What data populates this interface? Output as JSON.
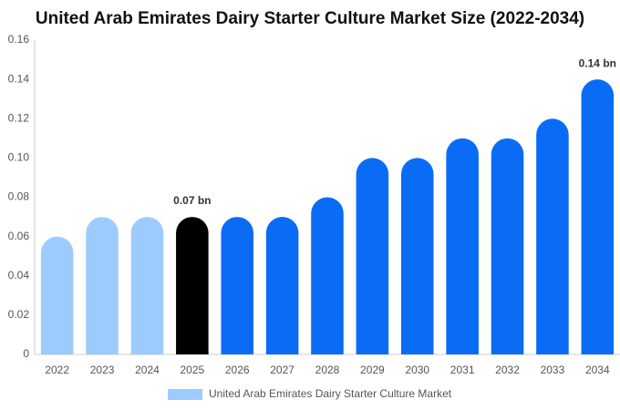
{
  "chart_data": {
    "type": "bar",
    "title": "United Arab Emirates Dairy Starter Culture Market Size (2022-2034)",
    "categories": [
      "2022",
      "2023",
      "2024",
      "2025",
      "2026",
      "2027",
      "2028",
      "2029",
      "2030",
      "2031",
      "2032",
      "2033",
      "2034"
    ],
    "series": [
      {
        "name": "United Arab Emirates Dairy Starter Culture Market",
        "color": "#9ecbff",
        "colors": [
          "#9ecbff",
          "#9ecbff",
          "#9ecbff",
          "#000000",
          "#0a6cf5",
          "#0a6cf5",
          "#0a6cf5",
          "#0a6cf5",
          "#0a6cf5",
          "#0a6cf5",
          "#0a6cf5",
          "#0a6cf5",
          "#0a6cf5"
        ],
        "values": [
          0.06,
          0.07,
          0.07,
          0.07,
          0.07,
          0.07,
          0.08,
          0.1,
          0.1,
          0.11,
          0.11,
          0.12,
          0.14
        ],
        "value_labels": [
          null,
          null,
          null,
          "0.07 bn",
          null,
          null,
          null,
          null,
          null,
          null,
          null,
          null,
          "0.14 bn"
        ]
      }
    ],
    "ylim": [
      0,
      0.16
    ],
    "yticks": [
      0,
      0.02,
      0.04,
      0.06,
      0.08,
      {
        "value": 0.1,
        "label": "0.10"
      },
      0.12,
      0.14,
      0.16
    ],
    "grid": false
  }
}
